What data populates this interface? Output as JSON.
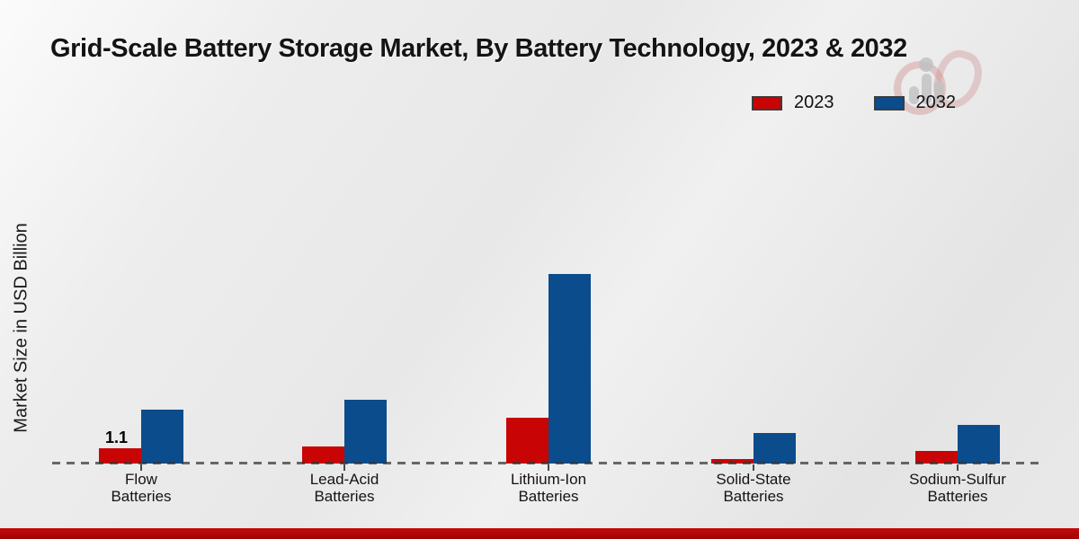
{
  "chart_data": {
    "type": "bar",
    "title": "Grid-Scale Battery Storage Market, By Battery Technology, 2023 & 2032",
    "xlabel": "",
    "ylabel": "Market Size in USD Billion",
    "value_unit": "USD Billion",
    "categories": [
      "Flow Batteries",
      "Lead-Acid Batteries",
      "Lithium-Ion Batteries",
      "Solid-State Batteries",
      "Sodium-Sulfur Batteries"
    ],
    "categories_lines": [
      [
        "Flow",
        "Batteries"
      ],
      [
        "Lead-Acid",
        "Batteries"
      ],
      [
        "Lithium-Ion",
        "Batteries"
      ],
      [
        "Solid-State",
        "Batteries"
      ],
      [
        "Sodium-Sulfur",
        "Batteries"
      ]
    ],
    "series": [
      {
        "name": "2023",
        "color": "#c80404",
        "values": [
          1.1,
          1.2,
          3.3,
          0.3,
          0.9
        ]
      },
      {
        "name": "2032",
        "color": "#0b4c8c",
        "values": [
          3.9,
          4.6,
          13.6,
          2.2,
          2.8
        ]
      }
    ],
    "data_labels": [
      {
        "series_index": 0,
        "category_index": 0,
        "text": "1.1"
      }
    ],
    "legend_position": "top-right",
    "grid": "off",
    "baseline_style": "dashed",
    "ylim": [
      0,
      14
    ]
  },
  "colors": {
    "series_2023": "#c80404",
    "series_2032": "#0b4c8c",
    "baseline": "#343434",
    "footer_band": "#b00606",
    "background": "#e9e9e9"
  }
}
